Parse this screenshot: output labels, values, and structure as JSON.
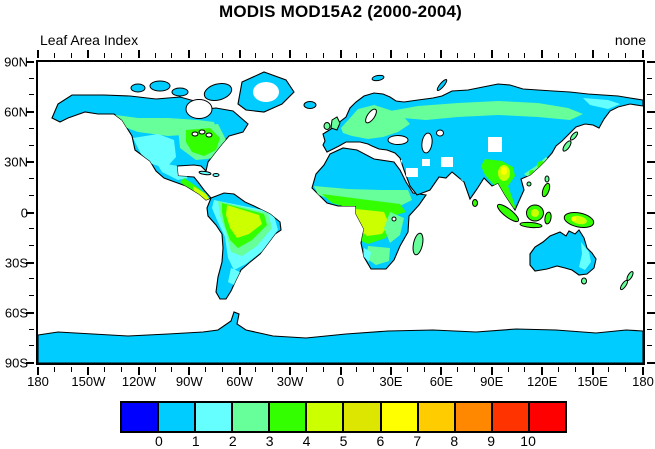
{
  "title": "MODIS MOD15A2 (2000-2004)",
  "subtitle_left": "Leaf Area Index",
  "subtitle_right": "none",
  "axes": {
    "x_tick_labels": [
      "180",
      "150W",
      "120W",
      "90W",
      "60W",
      "30W",
      "0",
      "30E",
      "60E",
      "90E",
      "120E",
      "150E",
      "180"
    ],
    "y_tick_labels": [
      "90N",
      "60N",
      "30N",
      "0",
      "30S",
      "60S",
      "90S"
    ],
    "minor_ticks_between_major": 2
  },
  "colorbar": {
    "labels": [
      "0",
      "1",
      "2",
      "3",
      "4",
      "5",
      "6",
      "7",
      "8",
      "9",
      "10"
    ],
    "colors": [
      "#0000FF",
      "#00CCFF",
      "#66FFFF",
      "#66FF99",
      "#33FF00",
      "#CCFF00",
      "#DDE600",
      "#FFFF00",
      "#FFCC00",
      "#FF8800",
      "#FF3300",
      "#FF0000"
    ]
  },
  "chart_data": {
    "type": "heatmap",
    "subtype": "filled-contour world map, equirectangular projection",
    "title": "MODIS MOD15A2 (2000-2004)",
    "variable": "Leaf Area Index",
    "units": "none",
    "lon_range": [
      -180,
      180
    ],
    "lat_range": [
      -90,
      90
    ],
    "contour_levels": [
      0,
      1,
      2,
      3,
      4,
      5,
      6,
      7,
      8,
      9,
      10
    ],
    "level_colors": [
      "#0000FF",
      "#00CCFF",
      "#66FFFF",
      "#66FF99",
      "#33FF00",
      "#CCFF00",
      "#DDE600",
      "#FFFF00",
      "#FFCC00",
      "#FF8800",
      "#FF3300",
      "#FF0000"
    ],
    "grid": false,
    "regions": [
      {
        "region": "Alaska / northern Canada tundra",
        "lai": "0-1"
      },
      {
        "region": "Southern Canada boreal belt",
        "lai": "1-3"
      },
      {
        "region": "Western US interior",
        "lai": "1-2"
      },
      {
        "region": "Eastern US / Great Lakes",
        "lai": "3-4"
      },
      {
        "region": "Mexico",
        "lai": "1-2"
      },
      {
        "region": "Central America",
        "lai": "4-5"
      },
      {
        "region": "Amazon Basin core",
        "lai": "4-5"
      },
      {
        "region": "Amazon fringe",
        "lai": "2-4"
      },
      {
        "region": "Patagonia / Andes",
        "lai": "0-1"
      },
      {
        "region": "Sahara and Arabia",
        "lai": "0-1"
      },
      {
        "region": "Sahel belt",
        "lai": "2-4"
      },
      {
        "region": "Congo Basin core",
        "lai": "4-5"
      },
      {
        "region": "Southern Africa",
        "lai": "1-3"
      },
      {
        "region": "Europe / Scandinavia",
        "lai": "2-3"
      },
      {
        "region": "Siberian taiga belt",
        "lai": "2-3"
      },
      {
        "region": "Northern Siberia tundra",
        "lai": "0-1"
      },
      {
        "region": "India",
        "lai": "1-2"
      },
      {
        "region": "Himalaya / Southeast Asia",
        "lai": "3-7"
      },
      {
        "region": "Southeast China",
        "lai": "2-4"
      },
      {
        "region": "Indonesia / New Guinea",
        "lai": "3-6"
      },
      {
        "region": "Australia",
        "lai": "0-2"
      },
      {
        "region": "Antarctica coastal band",
        "lai": "0-1"
      },
      {
        "region": "Greenland interior, Tibet/Tarim and Middle East cells",
        "lai": "missing (white)"
      }
    ]
  }
}
